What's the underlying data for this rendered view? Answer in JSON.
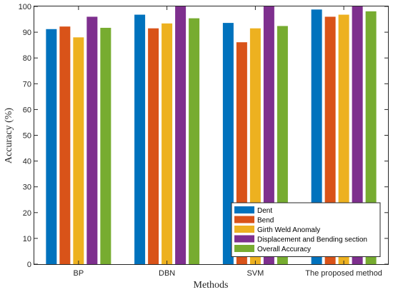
{
  "chart_data": {
    "type": "bar",
    "categories": [
      "BP",
      "DBN",
      "SVM",
      "The proposed method"
    ],
    "series": [
      {
        "name": "Dent",
        "color": "#0072BD",
        "values": [
          91.2,
          96.8,
          93.6,
          98.8
        ]
      },
      {
        "name": "Bend",
        "color": "#D95319",
        "values": [
          92.2,
          91.5,
          86.1,
          96.0
        ]
      },
      {
        "name": "Girth Weld Anomaly",
        "color": "#EDB120",
        "values": [
          88.0,
          93.4,
          91.5,
          96.8
        ]
      },
      {
        "name": "Displacement and Bending section",
        "color": "#7E2F8E",
        "values": [
          96.0,
          100.0,
          100.0,
          100.0
        ]
      },
      {
        "name": "Overall Accuracy",
        "color": "#77AC30",
        "values": [
          91.7,
          95.4,
          92.4,
          98.1
        ]
      }
    ],
    "xlabel": "Methods",
    "ylabel": "Accuracy (%)",
    "ylim": [
      0,
      100
    ],
    "yticks": [
      0,
      10,
      20,
      30,
      40,
      50,
      60,
      70,
      80,
      90,
      100
    ],
    "grid": false,
    "legend_position": "bottom-right"
  }
}
